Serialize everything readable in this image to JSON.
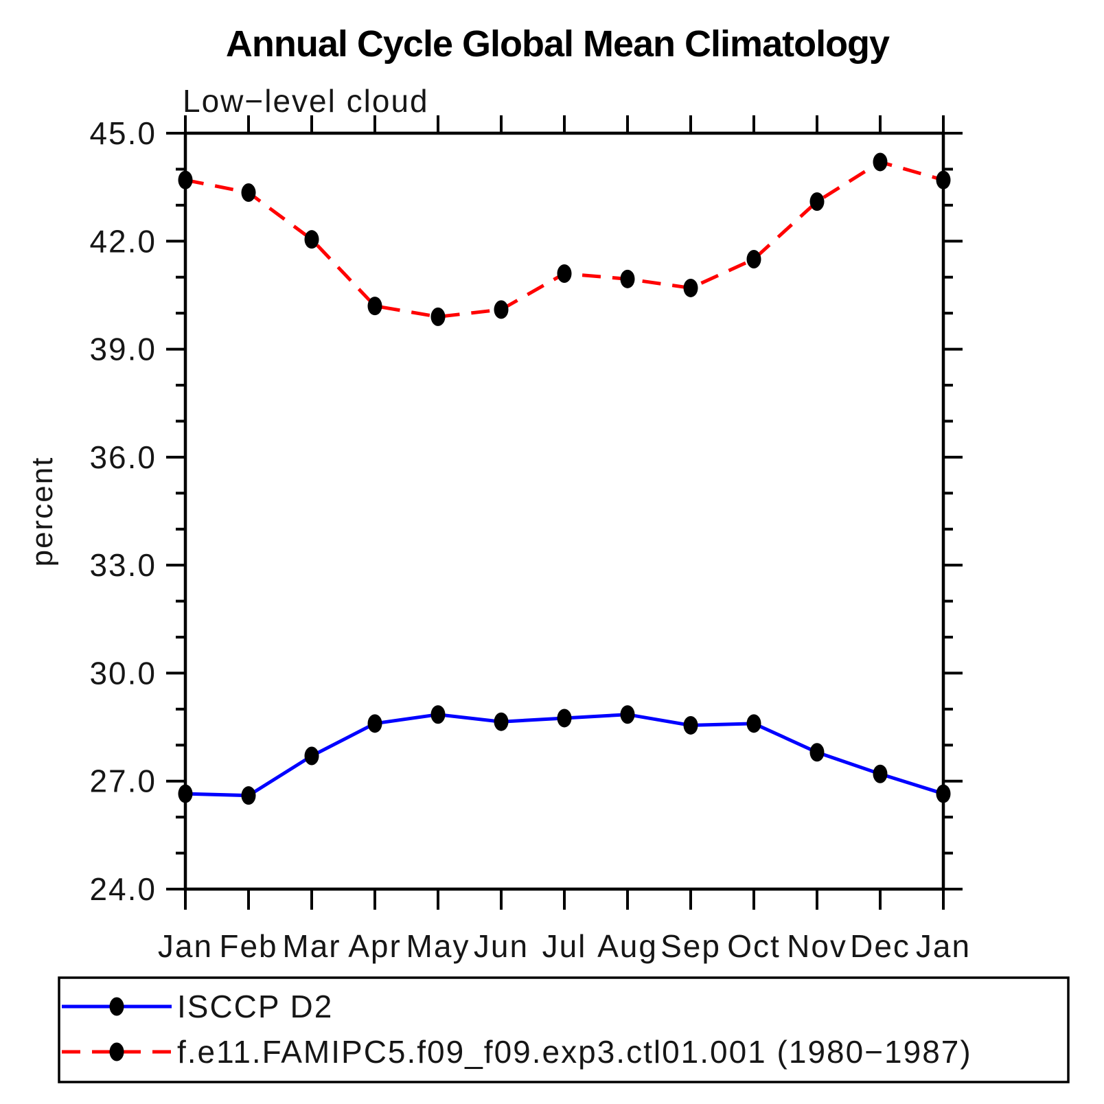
{
  "title": "Annual Cycle Global Mean Climatology",
  "subtitle": "Low−level cloud",
  "ylabel": "percent",
  "colors": {
    "axis": "#000000",
    "marker": "#000000",
    "observation_line": "#0000ff",
    "model_line": "#ff0000"
  },
  "chart_data": {
    "type": "line",
    "title": "Annual Cycle Global Mean Climatology",
    "subtitle": "Low−level cloud",
    "xlabel": "",
    "ylabel": "percent",
    "categories": [
      "Jan",
      "Feb",
      "Mar",
      "Apr",
      "May",
      "Jun",
      "Jul",
      "Aug",
      "Sep",
      "Oct",
      "Nov",
      "Dec",
      "Jan"
    ],
    "series": [
      {
        "name": "ISCCP D2",
        "color": "#0000ff",
        "line_style": "solid",
        "marker": "filled-circle",
        "marker_color": "#000000",
        "values": [
          26.65,
          26.6,
          27.7,
          28.6,
          28.85,
          28.65,
          28.75,
          28.85,
          28.55,
          28.6,
          27.8,
          27.2,
          26.65
        ]
      },
      {
        "name": "f.e11.FAMIPC5.f09_f09.exp3.ctl01.001 (1980−1987)",
        "color": "#ff0000",
        "line_style": "dashed",
        "marker": "filled-circle",
        "marker_color": "#000000",
        "values": [
          43.7,
          43.35,
          42.05,
          40.2,
          39.9,
          40.1,
          41.1,
          40.95,
          40.7,
          41.5,
          43.1,
          44.2,
          43.7
        ]
      }
    ],
    "ylim": [
      24.0,
      45.0
    ],
    "ytick_major_step": 3.0,
    "ytick_minor_step": 1.0,
    "ytick_label_format": "one-decimal",
    "grid": false,
    "legend_position": "bottom-left-box"
  }
}
